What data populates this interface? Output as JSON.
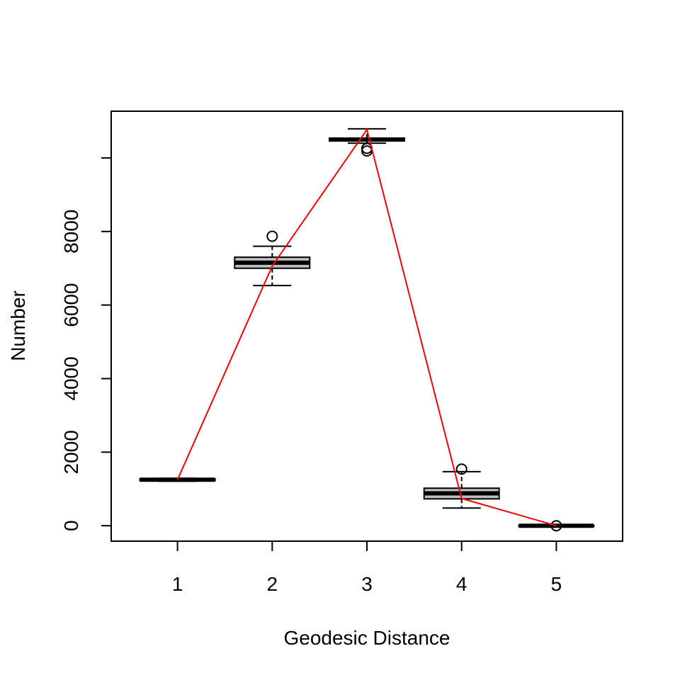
{
  "chart_data": {
    "type": "boxplot",
    "xlabel": "Geodesic Distance",
    "ylabel": "Number",
    "ylim": [
      -420,
      11270
    ],
    "xlim": [
      0.3,
      5.7
    ],
    "x_ticks": [
      "1",
      "2",
      "3",
      "4",
      "5"
    ],
    "y_ticks": [
      0,
      2000,
      4000,
      6000,
      8000
    ],
    "y_tick_labels": [
      "0",
      "2000",
      "4000",
      "6000",
      "8000"
    ],
    "y_tick_extra": [
      10000
    ],
    "grid": false,
    "box_fill": "#bebebe",
    "line_color": "#ff0000",
    "boxes": [
      {
        "x": 1,
        "whisker_low": 1210,
        "q1": 1225,
        "median": 1250,
        "q3": 1275,
        "whisker_high": 1290,
        "outliers": []
      },
      {
        "x": 2,
        "whisker_low": 6530,
        "q1": 7000,
        "median": 7150,
        "q3": 7300,
        "whisker_high": 7600,
        "outliers": [
          7870
        ]
      },
      {
        "x": 3,
        "whisker_low": 10400,
        "q1": 10460,
        "median": 10500,
        "q3": 10540,
        "whisker_high": 10790,
        "outliers": [
          10190,
          10260
        ]
      },
      {
        "x": 4,
        "whisker_low": 480,
        "q1": 730,
        "median": 880,
        "q3": 1020,
        "whisker_high": 1470,
        "outliers": [
          1540
        ]
      },
      {
        "x": 5,
        "whisker_low": -10,
        "q1": -5,
        "median": 0,
        "q3": 5,
        "whisker_high": 10,
        "outliers": [
          0
        ]
      }
    ],
    "line": {
      "x": [
        1,
        2,
        3,
        4,
        5
      ],
      "y": [
        1250,
        7060,
        10770,
        740,
        0
      ]
    }
  }
}
